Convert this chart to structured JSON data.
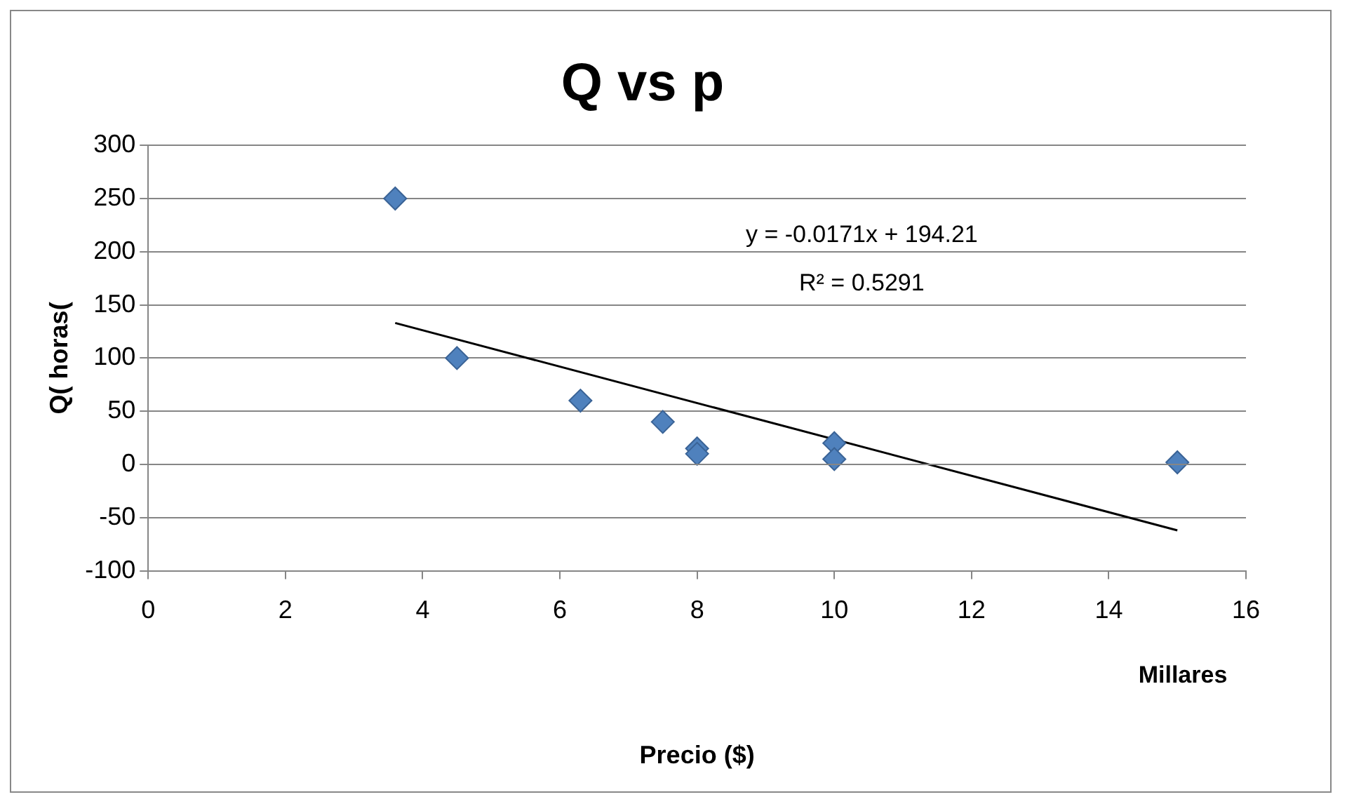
{
  "chart_data": {
    "type": "scatter",
    "title": "Q vs p",
    "xlabel": "Precio ($)",
    "ylabel": "Q( horas(",
    "x": [
      3.6,
      4.5,
      6.3,
      7.5,
      8,
      8,
      10,
      10,
      15
    ],
    "series": [
      {
        "color": "#4f81bd",
        "marker": "diamond",
        "values": [
          250,
          100,
          60,
          40,
          15,
          10,
          20,
          5,
          2
        ]
      },
      {
        "type": "line",
        "color": "#000000",
        "marker": "none",
        "x": [
          3.6,
          15
        ],
        "values": [
          133,
          -62
        ]
      }
    ],
    "xlim": [
      0,
      16
    ],
    "xticks": [
      0,
      2,
      4,
      6,
      8,
      10,
      12,
      14,
      16
    ],
    "ylim": [
      -100,
      300
    ],
    "yticks": [
      -100,
      -50,
      0,
      50,
      100,
      150,
      200,
      250,
      300
    ],
    "grid": "y",
    "legend": false,
    "annotations": [
      "y = -0.0171x + 194.21",
      "R² = 0.5291",
      "Millares"
    ]
  }
}
